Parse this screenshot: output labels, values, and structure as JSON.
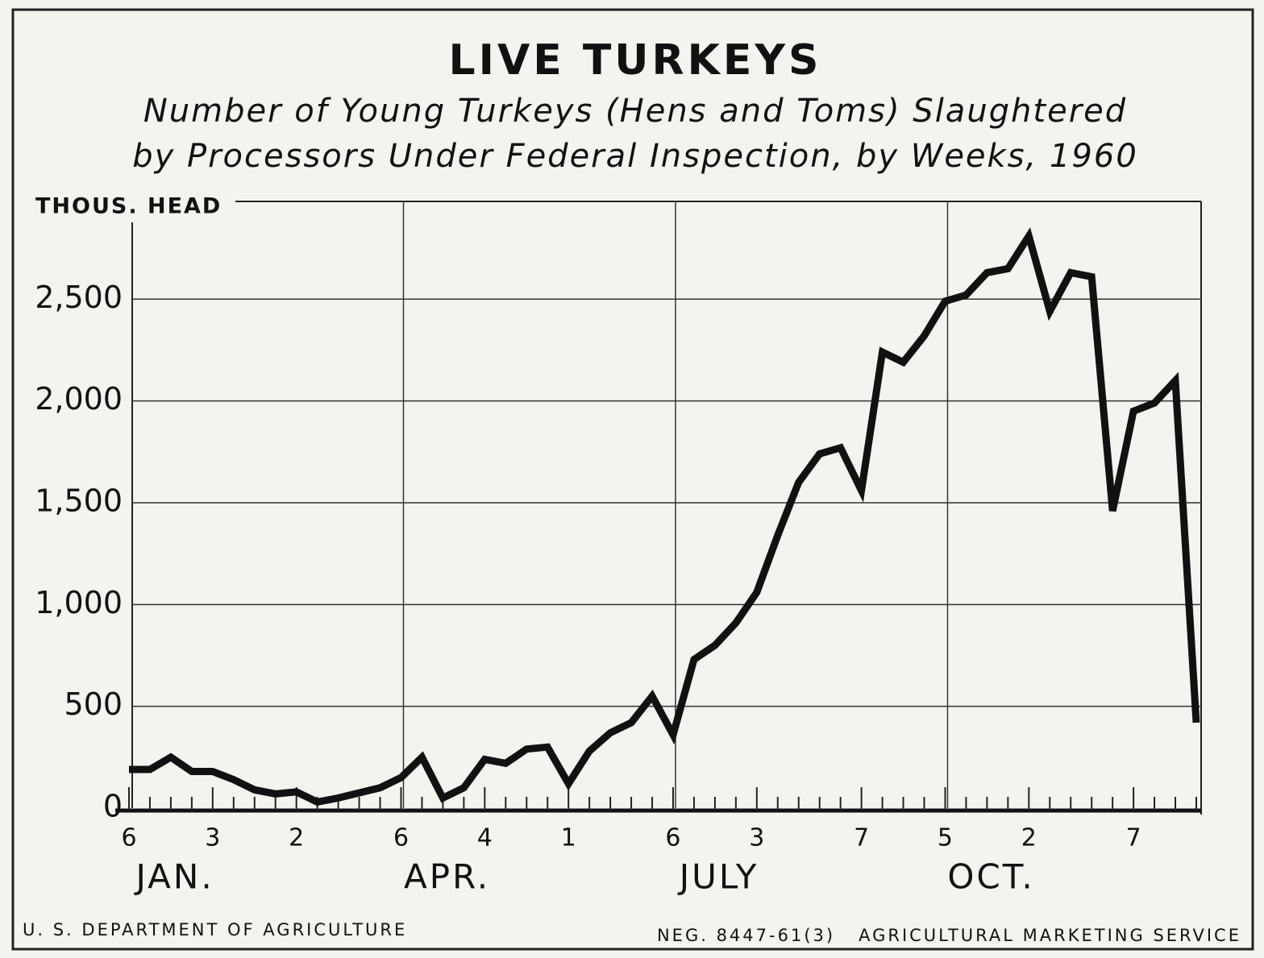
{
  "chart_data": {
    "type": "line",
    "title": "LIVE TURKEYS",
    "subtitle": [
      "Number of Young Turkeys (Hens and Toms) Slaughtered",
      "by Processors Under Federal Inspection, by Weeks, 1960"
    ],
    "y_label": "THOUS. HEAD",
    "categories": [
      "6",
      null,
      null,
      null,
      "3",
      null,
      null,
      null,
      "2",
      null,
      null,
      null,
      null,
      "6",
      null,
      null,
      null,
      "4",
      null,
      null,
      null,
      "1",
      null,
      null,
      null,
      null,
      "6",
      null,
      null,
      null,
      "3",
      null,
      null,
      null,
      null,
      "7",
      null,
      null,
      null,
      "5",
      null,
      null,
      null,
      "2",
      null,
      null,
      null,
      null,
      "7",
      null,
      null,
      null
    ],
    "month_labels": [
      "JAN.",
      "APR.",
      "JULY",
      "OCT."
    ],
    "series": [
      {
        "name": "Young turkeys slaughtered",
        "color": "#111111",
        "values": [
          190,
          190,
          250,
          180,
          180,
          140,
          90,
          70,
          80,
          30,
          50,
          75,
          100,
          150,
          250,
          50,
          100,
          240,
          220,
          290,
          300,
          120,
          280,
          370,
          420,
          550,
          360,
          730,
          800,
          910,
          1060,
          1340,
          1600,
          1740,
          1770,
          1560,
          2240,
          2190,
          2320,
          2490,
          2520,
          2630,
          2650,
          2810,
          2440,
          2630,
          2610,
          1460,
          1950,
          1990,
          2100,
          420
        ]
      }
    ],
    "ylim": [
      0,
      2980
    ],
    "yticks": [
      0,
      500,
      {
        "value": 1000,
        "label": "1,000"
      },
      {
        "value": 1500,
        "label": "1,500"
      },
      {
        "value": 2000,
        "label": "2,000"
      },
      {
        "value": 2500,
        "label": "2,500"
      }
    ],
    "grid": true,
    "footer_left": "U. S. DEPARTMENT OF AGRICULTURE",
    "footer_right": "NEG. 8447-61(3)   AGRICULTURAL MARKETING SERVICE"
  }
}
